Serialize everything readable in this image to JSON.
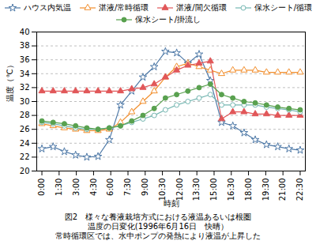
{
  "chart_data": {
    "type": "line",
    "xlabel": "時刻",
    "ylabel": "温度（℃）",
    "caption": [
      "図2　様々な養液栽培方式における液温あるいは根圏",
      "温度の日変化(1996年6月16日　快晴）",
      "常時循環区では、水中ポンプの発熱により液温が上昇した"
    ],
    "x": [
      0,
      0.978261,
      1.956522,
      2.934783,
      3.913043,
      4.891304,
      5.869565,
      6.847826,
      7.826087,
      8.804348,
      9.782609,
      10.76087,
      11.73913,
      12.717391,
      13.695652,
      14.673913,
      15.652174,
      16.630435,
      17.608696,
      18.586957,
      19.565217,
      20.543478,
      21.521739,
      22.5
    ],
    "xlim": [
      -0.45,
      22.95
    ],
    "xticks": [
      {
        "value": 0,
        "label": "0:00"
      },
      {
        "value": 1.5,
        "label": "1:30"
      },
      {
        "value": 3,
        "label": "3:00"
      },
      {
        "value": 4.5,
        "label": "4:30"
      },
      {
        "value": 6,
        "label": "6:00"
      },
      {
        "value": 7.5,
        "label": "7:30"
      },
      {
        "value": 9,
        "label": "9:00"
      },
      {
        "value": 10.5,
        "label": "10:30"
      },
      {
        "value": 12,
        "label": "12:00"
      },
      {
        "value": 13.5,
        "label": "13:30"
      },
      {
        "value": 15,
        "label": "15:00"
      },
      {
        "value": 16.5,
        "label": "16:30"
      },
      {
        "value": 18,
        "label": "18:00"
      },
      {
        "value": 19.5,
        "label": "19:30"
      },
      {
        "value": 21,
        "label": "21:00"
      },
      {
        "value": 22.5,
        "label": "22:30"
      }
    ],
    "ylim": [
      20,
      40
    ],
    "yticks": [
      20,
      22,
      24,
      26,
      28,
      30,
      32,
      34,
      36,
      38,
      40
    ],
    "grid": "y",
    "legend": "top",
    "series": [
      {
        "name": "ハウス内気温",
        "marker": "star-open",
        "values": [
          23.2,
          23.5,
          22.8,
          22.3,
          22.0,
          22.1,
          24.5,
          29.5,
          31.5,
          33.5,
          35.0,
          37.2,
          37.0,
          35.5,
          36.8,
          33.0,
          27.0,
          26.5,
          25.5,
          24.5,
          23.8,
          23.5,
          23.2,
          23.0
        ]
      },
      {
        "name": "湛液/常時循環",
        "marker": "triangle-open",
        "values": [
          26.8,
          26.5,
          26.2,
          26.0,
          25.8,
          25.8,
          26.0,
          27.0,
          28.5,
          30.0,
          31.5,
          33.5,
          35.0,
          35.5,
          35.0,
          34.5,
          34.0,
          34.5,
          34.5,
          34.5,
          34.2,
          34.2,
          34.2,
          34.2
        ]
      },
      {
        "name": "湛液/間欠循環",
        "marker": "triangle-filled",
        "values": [
          31.5,
          31.5,
          31.5,
          31.5,
          31.5,
          31.5,
          31.5,
          31.5,
          31.8,
          32.0,
          32.5,
          33.5,
          34.5,
          35.2,
          35.5,
          35.8,
          27.5,
          28.5,
          28.5,
          28.2,
          28.2,
          28.0,
          28.0,
          28.0
        ]
      },
      {
        "name": "保水シート/循環",
        "marker": "circle-open",
        "values": [
          27.0,
          26.8,
          26.5,
          26.2,
          26.0,
          26.0,
          26.2,
          26.5,
          27.0,
          27.5,
          28.0,
          28.8,
          29.5,
          30.0,
          30.5,
          31.0,
          29.5,
          29.5,
          29.5,
          29.5,
          29.2,
          29.0,
          28.8,
          28.5
        ]
      },
      {
        "name": "保水シート/掛流し",
        "marker": "circle-filled",
        "values": [
          27.2,
          27.0,
          26.8,
          26.5,
          26.2,
          26.0,
          26.2,
          26.5,
          27.2,
          28.0,
          29.0,
          30.5,
          31.0,
          31.5,
          32.0,
          32.5,
          31.0,
          30.5,
          30.0,
          29.8,
          29.5,
          29.2,
          29.0,
          28.8
        ]
      }
    ]
  }
}
